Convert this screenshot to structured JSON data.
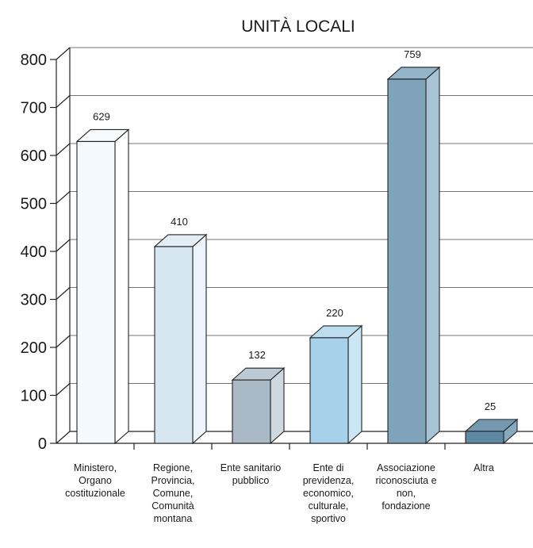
{
  "chart_data": {
    "type": "bar",
    "title": "UNITÀ LOCALI",
    "categories": [
      [
        "Ministero,",
        "Organo",
        "costituzionale"
      ],
      [
        "Regione,",
        "Provincia,",
        "Comune,",
        "Comunità",
        "montana"
      ],
      [
        "Ente sanitario",
        "pubblico"
      ],
      [
        "Ente di",
        "previdenza,",
        "economico,",
        "culturale,",
        "sportivo"
      ],
      [
        "Associazione",
        "riconosciuta e",
        "non,",
        "fondazione"
      ],
      [
        "Altra"
      ]
    ],
    "values": [
      629,
      410,
      132,
      220,
      759,
      25
    ],
    "value_labels": [
      "629",
      "410",
      "132",
      "220",
      "759",
      "25"
    ],
    "bar_colors": [
      {
        "front": "#f3f9fd",
        "side": "#ffffff",
        "top": "#f7fbfe"
      },
      {
        "front": "#d7e7f2",
        "side": "#eef5fa",
        "top": "#e3eef6"
      },
      {
        "front": "#a9b9c5",
        "side": "#cdd8e0",
        "top": "#bccad4"
      },
      {
        "front": "#a7d1ea",
        "side": "#cde6f4",
        "top": "#bcdcef"
      },
      {
        "front": "#7ea3bb",
        "side": "#a7c3d5",
        "top": "#93b4c9"
      },
      {
        "front": "#5f88a3",
        "side": "#87a8bd",
        "top": "#7498b0"
      }
    ],
    "ylim": [
      0,
      800
    ],
    "yticks": [
      0,
      100,
      200,
      300,
      400,
      500,
      600,
      700,
      800
    ],
    "ytick_labels": [
      "0",
      "100",
      "200",
      "300",
      "400",
      "500",
      "600",
      "700",
      "800"
    ],
    "grid": true,
    "legend": false,
    "xlabel": "",
    "ylabel": ""
  }
}
